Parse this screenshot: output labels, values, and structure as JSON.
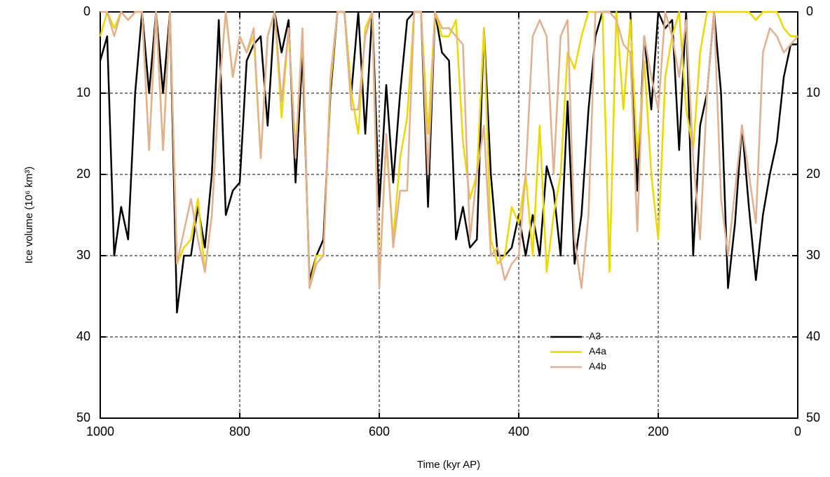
{
  "chart_data": {
    "type": "line",
    "x_label": "Time (kyr AP)",
    "y_label": "Ice volume (10⁶ km³)",
    "x": [
      1000,
      990,
      980,
      970,
      960,
      950,
      940,
      930,
      920,
      910,
      900,
      890,
      880,
      870,
      860,
      850,
      840,
      830,
      820,
      810,
      800,
      790,
      780,
      770,
      760,
      750,
      740,
      730,
      720,
      710,
      700,
      690,
      680,
      670,
      660,
      650,
      640,
      630,
      620,
      610,
      600,
      590,
      580,
      570,
      560,
      550,
      540,
      530,
      520,
      510,
      500,
      490,
      480,
      470,
      460,
      450,
      440,
      430,
      420,
      410,
      400,
      390,
      380,
      370,
      360,
      350,
      340,
      330,
      320,
      310,
      300,
      290,
      280,
      270,
      260,
      250,
      240,
      230,
      220,
      210,
      200,
      190,
      180,
      170,
      160,
      150,
      140,
      130,
      120,
      110,
      100,
      90,
      80,
      70,
      60,
      50,
      40,
      30,
      20,
      10,
      0
    ],
    "series": [
      {
        "name": "A3",
        "color": "#000000",
        "values": [
          6,
          3,
          30,
          24,
          28,
          10,
          0,
          10,
          0,
          10,
          0,
          37,
          30,
          30,
          24,
          29,
          20,
          1,
          25,
          22,
          21,
          6,
          4,
          3,
          14,
          0,
          5,
          1,
          21,
          5,
          33,
          30,
          28,
          10,
          0,
          0,
          10,
          0,
          15,
          0,
          24,
          9,
          21,
          10,
          1,
          0,
          0,
          24,
          0,
          5,
          6,
          28,
          24,
          29,
          28,
          2,
          20,
          30,
          30,
          29,
          25,
          30,
          25,
          30,
          19,
          22,
          30,
          11,
          31,
          25,
          12,
          3,
          0,
          0,
          0,
          0,
          0,
          22,
          3,
          12,
          0,
          2,
          1,
          17,
          0,
          30,
          14,
          10,
          0,
          10,
          34,
          26,
          14,
          24,
          33,
          25,
          20,
          16,
          8,
          4,
          4
        ]
      },
      {
        "name": "A4a",
        "color": "#ecd800",
        "values": [
          3,
          0,
          2,
          0,
          1,
          0,
          0,
          17,
          0,
          17,
          0,
          31,
          29,
          28,
          23,
          32,
          25,
          10,
          0,
          8,
          3,
          5,
          3,
          18,
          3,
          0,
          13,
          2,
          17,
          3,
          34,
          30,
          30,
          9,
          0,
          0,
          10,
          15,
          2,
          0,
          33,
          16,
          28,
          18,
          13,
          0,
          0,
          15,
          0,
          3,
          3,
          1,
          16,
          23,
          20,
          2,
          28,
          31,
          30,
          24,
          26,
          20,
          30,
          14,
          32,
          25,
          20,
          5,
          7,
          3,
          0,
          0,
          0,
          32,
          0,
          12,
          1,
          18,
          6,
          20,
          28,
          8,
          3,
          0,
          12,
          17,
          5,
          0,
          0,
          0,
          0,
          0,
          0,
          0,
          1,
          0,
          0,
          0,
          2,
          3,
          3
        ]
      },
      {
        "name": "A4b",
        "color": "#e0b090",
        "values": [
          0,
          0,
          3,
          0,
          1,
          0,
          0,
          17,
          0,
          17,
          0,
          31,
          27,
          23,
          28,
          32,
          25,
          10,
          0,
          8,
          3,
          5,
          2,
          18,
          3,
          0,
          11,
          2,
          18,
          2,
          34,
          31,
          30,
          8,
          0,
          0,
          12,
          12,
          3,
          0,
          34,
          15,
          29,
          22,
          22,
          0,
          0,
          20,
          0,
          2,
          2,
          3,
          4,
          28,
          20,
          14,
          30,
          29,
          33,
          31,
          30,
          20,
          3,
          1,
          3,
          20,
          3,
          1,
          28,
          34,
          25,
          0,
          0,
          0,
          1,
          4,
          5,
          27,
          3,
          8,
          12,
          0,
          3,
          8,
          1,
          18,
          28,
          10,
          0,
          23,
          30,
          22,
          14,
          20,
          26,
          5,
          2,
          3,
          5,
          4,
          3
        ]
      }
    ],
    "xlim": [
      1000,
      0
    ],
    "xticks": [
      1000,
      800,
      600,
      400,
      200,
      0
    ],
    "ylim": [
      50,
      0
    ],
    "yticks": [
      0,
      10,
      20,
      30,
      40,
      50
    ],
    "grid": true
  }
}
